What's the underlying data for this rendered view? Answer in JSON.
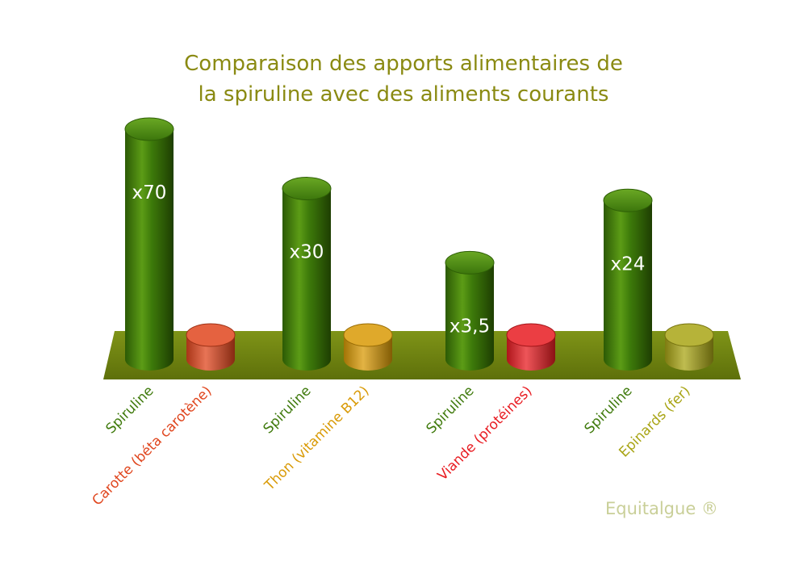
{
  "chart_data": {
    "type": "bar",
    "title_lines": [
      "Comparaison des apports alimentaires de",
      "la spiruline avec des aliments courants"
    ],
    "groups": [
      {
        "spiruline_label": "Spiruline",
        "spiruline_value_label": "x70",
        "spiruline_multiplier": 70,
        "food_label": "Carotte (béta carotène)",
        "food_color": "#e0461e"
      },
      {
        "spiruline_label": "Spiruline",
        "spiruline_value_label": "x30",
        "spiruline_multiplier": 30,
        "food_label": "Thon (vitamine B12)",
        "food_color": "#d99a06"
      },
      {
        "spiruline_label": "Spiruline",
        "spiruline_value_label": "x3,5",
        "spiruline_multiplier": 3.5,
        "food_label": "Viande (protéines)",
        "food_color": "#e81c22"
      },
      {
        "spiruline_label": "Spiruline",
        "spiruline_value_label": "x24",
        "spiruline_multiplier": 24,
        "food_label": "Epinards (fer)",
        "food_color": "#a9a516"
      }
    ],
    "food_value": 1,
    "spiruline_color": "#3f7a0c",
    "platform_color": "#6b7d10"
  },
  "watermark": "Equitalgue ®"
}
